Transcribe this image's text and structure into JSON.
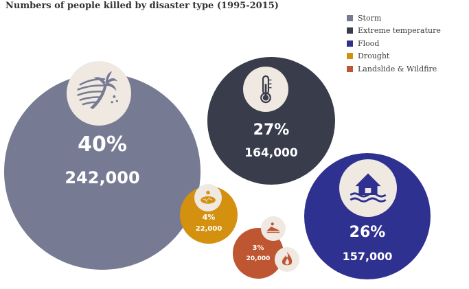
{
  "chart_data": {
    "type": "bubble",
    "title": "Numbers of people killed by disaster type (1995-2015)",
    "legend_position": "top-right",
    "series": [
      {
        "name": "Storm",
        "percent_label": "40%",
        "value_label": "242,000",
        "value": 242000,
        "color": "#767b93",
        "icon": "storm-icon"
      },
      {
        "name": "Extreme temperature",
        "percent_label": "27%",
        "value_label": "164,000",
        "value": 164000,
        "color": "#393c4b",
        "icon": "thermometer-icon"
      },
      {
        "name": "Flood",
        "percent_label": "26%",
        "value_label": "157,000",
        "value": 157000,
        "color": "#2f3190",
        "icon": "flood-house-icon"
      },
      {
        "name": "Drought",
        "percent_label": "4%",
        "value_label": "22,000",
        "value": 22000,
        "color": "#d4910f",
        "icon": "cracked-earth-icon"
      },
      {
        "name": "Landslide & Wildfire",
        "percent_label": "3%",
        "value_label": "20,000",
        "value": 20000,
        "color": "#bf5632",
        "icon": "landslide-fire-icon"
      }
    ]
  }
}
